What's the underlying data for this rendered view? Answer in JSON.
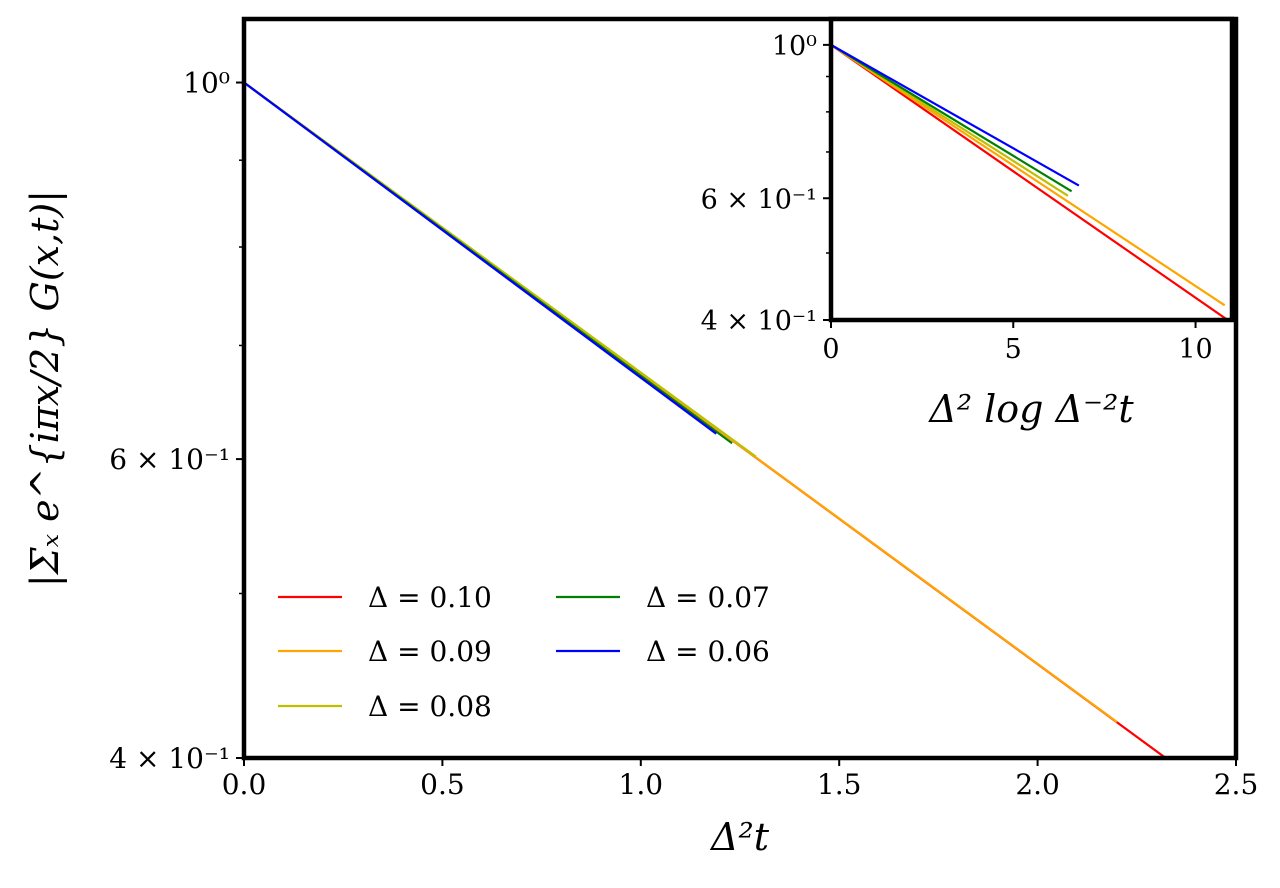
{
  "chart_data": [
    {
      "type": "line",
      "xlabel": "Δ²t",
      "ylabel": "|Σₓ e^{iπx/2} G(x,t)|",
      "yscale": "log",
      "xlim": [
        0,
        2.5
      ],
      "ylim": [
        0.4,
        1.09
      ],
      "grid": false,
      "legend_position": "lower-left",
      "legend_columns": 2,
      "xticks": [
        {
          "value": 0.0,
          "label": "0.0"
        },
        {
          "value": 0.5,
          "label": "0.5"
        },
        {
          "value": 1.0,
          "label": "1.0"
        },
        {
          "value": 1.5,
          "label": "1.5"
        },
        {
          "value": 2.0,
          "label": "2.0"
        },
        {
          "value": 2.5,
          "label": "2.5"
        }
      ],
      "yticks": [
        {
          "value": 1.0,
          "label": "10⁰"
        },
        {
          "value": 0.6,
          "label": "6 × 10⁻¹"
        },
        {
          "value": 0.4,
          "label": "4 × 10⁻¹"
        }
      ],
      "yminor_ticks": [
        0.5,
        0.7,
        0.8,
        0.9
      ],
      "series": [
        {
          "name": "Δ = 0.10",
          "color": "#ff0000",
          "x": [
            0.0,
            2.5
          ],
          "y": [
            1.0,
            0.373
          ]
        },
        {
          "name": "Δ = 0.09",
          "color": "#ffa500",
          "x": [
            0.0,
            2.2
          ],
          "y": [
            1.0,
            0.42
          ]
        },
        {
          "name": "Δ = 0.08",
          "color": "#bfbf00",
          "x": [
            0.0,
            1.29
          ],
          "y": [
            1.0,
            0.602
          ]
        },
        {
          "name": "Δ = 0.07",
          "color": "#008000",
          "x": [
            0.0,
            1.23
          ],
          "y": [
            1.0,
            0.613
          ]
        },
        {
          "name": "Δ = 0.06",
          "color": "#0000ff",
          "x": [
            0.0,
            1.19
          ],
          "y": [
            1.0,
            0.621
          ]
        }
      ]
    },
    {
      "type": "line",
      "role": "inset",
      "xlabel": "Δ² log Δ⁻²t",
      "yscale": "log",
      "xlim": [
        0,
        11
      ],
      "ylim": [
        0.4,
        1.09
      ],
      "xticks": [
        {
          "value": 0,
          "label": "0"
        },
        {
          "value": 5,
          "label": "5"
        },
        {
          "value": 10,
          "label": "10"
        }
      ],
      "yticks": [
        {
          "value": 1.0,
          "label": "10⁰"
        },
        {
          "value": 0.6,
          "label": "6 × 10⁻¹"
        },
        {
          "value": 0.4,
          "label": "4 × 10⁻¹"
        }
      ],
      "yminor_ticks": [
        0.5,
        0.7,
        0.8,
        0.9
      ],
      "series": [
        {
          "name": "Δ = 0.10",
          "color": "#ff0000",
          "x": [
            0.0,
            11.0
          ],
          "y": [
            1.0,
            0.396
          ]
        },
        {
          "name": "Δ = 0.09",
          "color": "#ffa500",
          "x": [
            0.0,
            10.8
          ],
          "y": [
            1.0,
            0.42
          ]
        },
        {
          "name": "Δ = 0.08",
          "color": "#bfbf00",
          "x": [
            0.0,
            6.5
          ],
          "y": [
            1.0,
            0.605
          ]
        },
        {
          "name": "Δ = 0.07",
          "color": "#008000",
          "x": [
            0.0,
            6.6
          ],
          "y": [
            1.0,
            0.614
          ]
        },
        {
          "name": "Δ = 0.06",
          "color": "#0000ff",
          "x": [
            0.0,
            6.8
          ],
          "y": [
            1.0,
            0.626
          ]
        }
      ]
    }
  ]
}
